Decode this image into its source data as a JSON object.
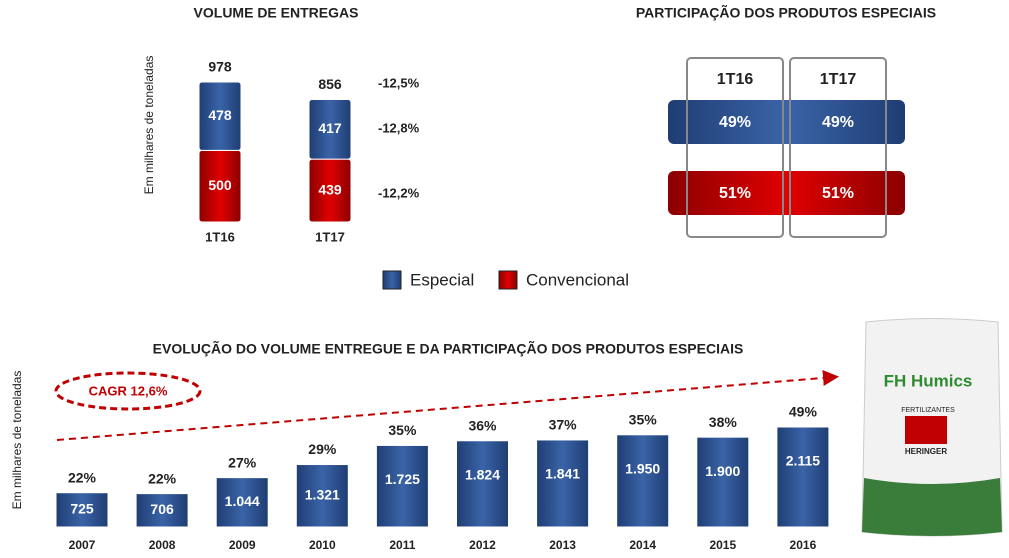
{
  "chart_data": [
    {
      "type": "stacked_bar",
      "title": "VOLUME DE ENTREGAS",
      "y_label": "Em milhares de toneladas",
      "categories": [
        "1T16",
        "1T17"
      ],
      "series": [
        {
          "name": "Especial",
          "color": "#2f5597",
          "values": [
            478,
            417
          ]
        },
        {
          "name": "Convencional",
          "color": "#c00000",
          "values": [
            500,
            439
          ]
        }
      ],
      "totals": [
        978,
        856
      ],
      "annotations": [
        "-12,5%",
        "-12,8%",
        "-12,2%"
      ],
      "legend": "bottom"
    },
    {
      "type": "table",
      "title": "PARTICIPAÇÃO DOS PRODUTOS ESPECIAIS",
      "categories": [
        "1T16",
        "1T17"
      ],
      "series": [
        {
          "color": "#2f5597",
          "values": [
            49,
            49
          ],
          "value_labels": [
            "49%",
            "49%"
          ]
        },
        {
          "color": "#c00000",
          "values": [
            51,
            51
          ],
          "value_labels": [
            "51%",
            "51%"
          ]
        }
      ]
    },
    {
      "type": "bar",
      "title": "EVOLUÇÃO DO VOLUME ENTREGUE E DA PARTICIPAÇÃO DOS PRODUTOS ESPECIAIS",
      "y_label": "Em milhares de toneladas",
      "color": "#2f5597",
      "categories": [
        "2007",
        "2008",
        "2009",
        "2010",
        "2011",
        "2012",
        "2013",
        "2014",
        "2015",
        "2016"
      ],
      "values": [
        725,
        706,
        1044,
        1321,
        1725,
        1824,
        1841,
        1950,
        1900,
        2115
      ],
      "value_labels": [
        "725",
        "706",
        "1.044",
        "1.321",
        "1.725",
        "1.824",
        "1.841",
        "1.950",
        "1.900",
        "2.115"
      ],
      "share": {
        "values": [
          22,
          22,
          27,
          29,
          35,
          36,
          37,
          35,
          38,
          49
        ],
        "value_labels": [
          "22%",
          "22%",
          "27%",
          "29%",
          "35%",
          "36%",
          "37%",
          "35%",
          "38%",
          "49%"
        ]
      },
      "annotation": "CAGR 12,6%"
    }
  ],
  "image": {
    "brand": "FH Humics",
    "line": "FERTILIZANTES",
    "maker": "HERINGER"
  }
}
